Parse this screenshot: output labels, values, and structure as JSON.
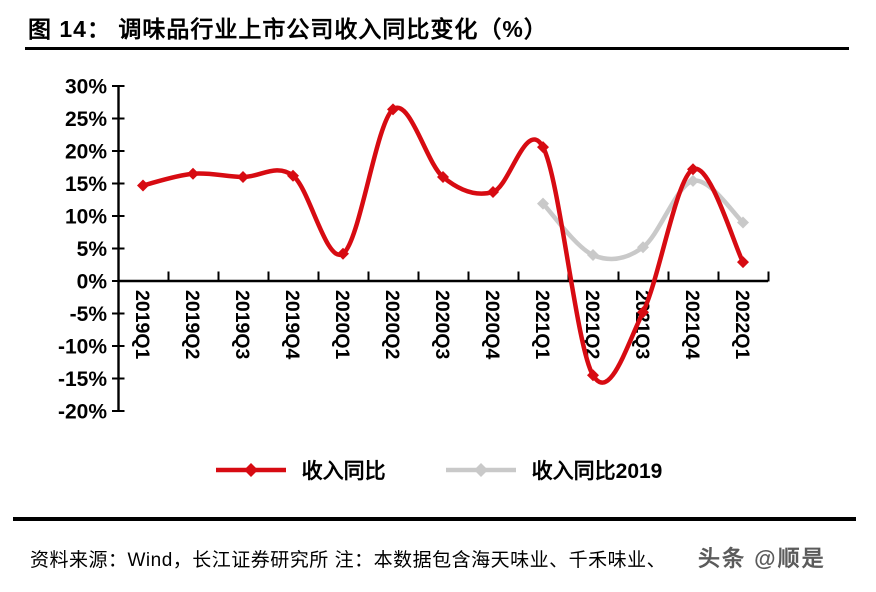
{
  "figure": {
    "title": "图 14： 调味品行业上市公司收入同比变化（%）",
    "source_note": "资料来源：Wind，长江证券研究所  注：本数据包含海天味业、千禾味业、",
    "watermark": "头条 @顺是"
  },
  "legend": [
    {
      "label": "收入同比",
      "color": "#d70b12"
    },
    {
      "label": "收入同比2019",
      "color": "#c9c9c9"
    }
  ],
  "chart_data": {
    "type": "line",
    "smooth": true,
    "marker": "diamond",
    "title": "调味品行业上市公司收入同比变化（%）",
    "xlabel": "",
    "ylabel": "",
    "ylim": [
      -20,
      30
    ],
    "ytick_step": 5,
    "ytick_labels": [
      "30%",
      "25%",
      "20%",
      "15%",
      "10%",
      "5%",
      "0%",
      "-5%",
      "-10%",
      "-15%",
      "-20%"
    ],
    "grid": false,
    "legend_position": "bottom",
    "categories": [
      "2019Q1",
      "2019Q2",
      "2019Q3",
      "2019Q4",
      "2020Q1",
      "2020Q2",
      "2020Q3",
      "2020Q4",
      "2021Q1",
      "2021Q2",
      "2021Q3",
      "2021Q4",
      "2022Q1"
    ],
    "series": [
      {
        "name": "收入同比",
        "color": "#d70b12",
        "values": [
          14.7,
          16.5,
          16.0,
          16.2,
          4.2,
          26.4,
          16.0,
          13.7,
          20.6,
          -14.5,
          -4.8,
          17.2,
          2.9
        ]
      },
      {
        "name": "收入同比2019",
        "color": "#c9c9c9",
        "values": [
          null,
          null,
          null,
          null,
          null,
          null,
          null,
          null,
          11.9,
          4.0,
          5.2,
          15.4,
          9.0
        ]
      }
    ]
  }
}
